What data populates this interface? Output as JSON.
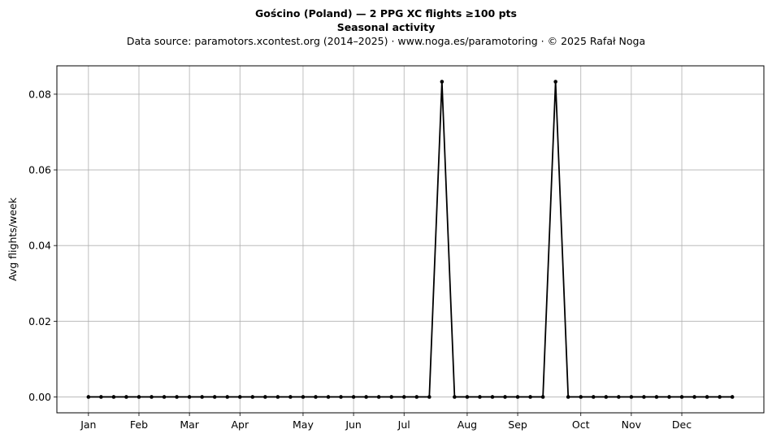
{
  "title": "Gościno (Poland)  —  2 PPG XC flights ≥100 pts",
  "subtitle": "Seasonal activity",
  "source_line": "Data source: paramotors.xcontest.org (2014–2025)  ·  www.noga.es/paramotoring  ·  © 2025 Rafał Noga",
  "chart_data": {
    "type": "line",
    "title": "Gościno (Poland)  —  2 PPG XC flights ≥100 pts",
    "subtitle": "Seasonal activity",
    "xlabel": "",
    "ylabel": "Avg flights/week",
    "grid": true,
    "x_unit": "week of year",
    "xlim": [
      -2.5,
      53.5
    ],
    "ylim": [
      -0.0042,
      0.0875
    ],
    "yticks": [
      0.0,
      0.02,
      0.04,
      0.06,
      0.08
    ],
    "ytick_labels": [
      "0.00",
      "0.02",
      "0.04",
      "0.06",
      "0.08"
    ],
    "xticks": [
      {
        "label": "Jan",
        "week": 0
      },
      {
        "label": "Feb",
        "week": 4
      },
      {
        "label": "Mar",
        "week": 8
      },
      {
        "label": "Apr",
        "week": 12
      },
      {
        "label": "May",
        "week": 17
      },
      {
        "label": "Jun",
        "week": 21
      },
      {
        "label": "Jul",
        "week": 25
      },
      {
        "label": "Aug",
        "week": 30
      },
      {
        "label": "Sep",
        "week": 34
      },
      {
        "label": "Oct",
        "week": 39
      },
      {
        "label": "Nov",
        "week": 43
      },
      {
        "label": "Dec",
        "week": 47
      }
    ],
    "series": [
      {
        "color": "#000000",
        "x": [
          0,
          1,
          2,
          3,
          4,
          5,
          6,
          7,
          8,
          9,
          10,
          11,
          12,
          13,
          14,
          15,
          16,
          17,
          18,
          19,
          20,
          21,
          22,
          23,
          24,
          25,
          26,
          27,
          28,
          29,
          30,
          31,
          32,
          33,
          34,
          35,
          36,
          37,
          38,
          39,
          40,
          41,
          42,
          43,
          44,
          45,
          46,
          47,
          48,
          49,
          50,
          51
        ],
        "values": [
          0,
          0,
          0,
          0,
          0,
          0,
          0,
          0,
          0,
          0,
          0,
          0,
          0,
          0,
          0,
          0,
          0,
          0,
          0,
          0,
          0,
          0,
          0,
          0,
          0,
          0,
          0,
          0,
          0.0833,
          0,
          0,
          0,
          0,
          0,
          0,
          0,
          0,
          0.0833,
          0,
          0,
          0,
          0,
          0,
          0,
          0,
          0,
          0,
          0,
          0,
          0,
          0,
          0
        ]
      }
    ]
  }
}
